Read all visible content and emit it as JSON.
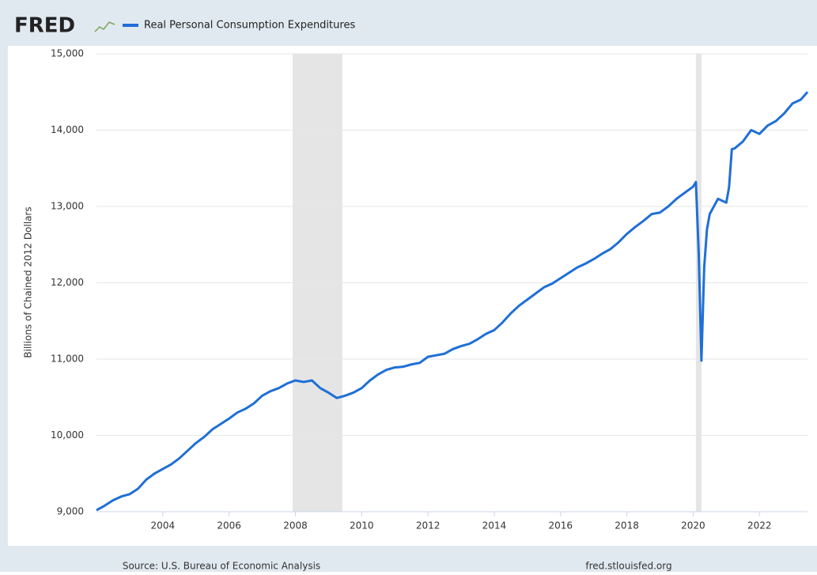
{
  "logo": "FRED",
  "chart_data": {
    "type": "line",
    "y_label": "Billions of Chained 2012 Dollars",
    "source": "Source: U.S. Bureau of Economic Analysis",
    "site": "fred.stlouisfed.org",
    "x": [
      2002.0,
      2002.25,
      2002.5,
      2002.75,
      2003.0,
      2003.25,
      2003.5,
      2003.75,
      2004.0,
      2004.25,
      2004.5,
      2004.75,
      2005.0,
      2005.25,
      2005.5,
      2005.75,
      2006.0,
      2006.25,
      2006.5,
      2006.75,
      2007.0,
      2007.25,
      2007.5,
      2007.75,
      2008.0,
      2008.25,
      2008.5,
      2008.75,
      2009.0,
      2009.25,
      2009.5,
      2009.75,
      2010.0,
      2010.25,
      2010.5,
      2010.75,
      2011.0,
      2011.25,
      2011.5,
      2011.75,
      2012.0,
      2012.25,
      2012.5,
      2012.75,
      2013.0,
      2013.25,
      2013.5,
      2013.75,
      2014.0,
      2014.25,
      2014.5,
      2014.75,
      2015.0,
      2015.25,
      2015.5,
      2015.75,
      2016.0,
      2016.25,
      2016.5,
      2016.75,
      2017.0,
      2017.25,
      2017.5,
      2017.75,
      2018.0,
      2018.25,
      2018.5,
      2018.75,
      2019.0,
      2019.25,
      2019.5,
      2019.75,
      2020.0,
      2020.083,
      2020.167,
      2020.25,
      2020.333,
      2020.417,
      2020.5,
      2020.75,
      2021.0,
      2021.083,
      2021.167,
      2021.25,
      2021.5,
      2021.75,
      2022.0,
      2022.25,
      2022.5,
      2022.75,
      2023.0,
      2023.25,
      2023.45
    ],
    "series": [
      {
        "name": "Real Personal Consumption Expenditures",
        "color": "#1f6fd6",
        "values": [
          9020,
          9080,
          9150,
          9200,
          9230,
          9300,
          9420,
          9500,
          9560,
          9620,
          9700,
          9800,
          9900,
          9980,
          10080,
          10150,
          10220,
          10300,
          10350,
          10420,
          10520,
          10580,
          10620,
          10680,
          10720,
          10700,
          10720,
          10620,
          10560,
          10490,
          10520,
          10560,
          10620,
          10720,
          10800,
          10860,
          10890,
          10900,
          10930,
          10950,
          11030,
          11050,
          11070,
          11130,
          11170,
          11200,
          11260,
          11330,
          11380,
          11480,
          11600,
          11700,
          11780,
          11860,
          11940,
          11990,
          12060,
          12130,
          12200,
          12250,
          12310,
          12380,
          12440,
          12530,
          12640,
          12730,
          12810,
          12900,
          12920,
          13000,
          13100,
          13180,
          13260,
          13320,
          12400,
          10980,
          12200,
          12700,
          12900,
          13100,
          13050,
          13250,
          13750,
          13760,
          13850,
          14000,
          13950,
          14060,
          14120,
          14220,
          14350,
          14400,
          14500
        ]
      }
    ],
    "recessions": [
      [
        2007.917,
        2009.417
      ],
      [
        2020.083,
        2020.25
      ]
    ],
    "recession_color": "#e5e5e5",
    "xlim": [
      2002.0,
      2023.45
    ],
    "xticks": [
      2004,
      2006,
      2008,
      2010,
      2012,
      2014,
      2016,
      2018,
      2020,
      2022
    ],
    "ylim": [
      9000,
      15000
    ],
    "yticks": [
      {
        "value": 9000,
        "label": "9,000"
      },
      {
        "value": 10000,
        "label": "10,000"
      },
      {
        "value": 11000,
        "label": "11,000"
      },
      {
        "value": 12000,
        "label": "12,000"
      },
      {
        "value": 13000,
        "label": "13,000"
      },
      {
        "value": 14000,
        "label": "14,000"
      },
      {
        "value": 15000,
        "label": "15,000"
      }
    ],
    "grid": true
  }
}
